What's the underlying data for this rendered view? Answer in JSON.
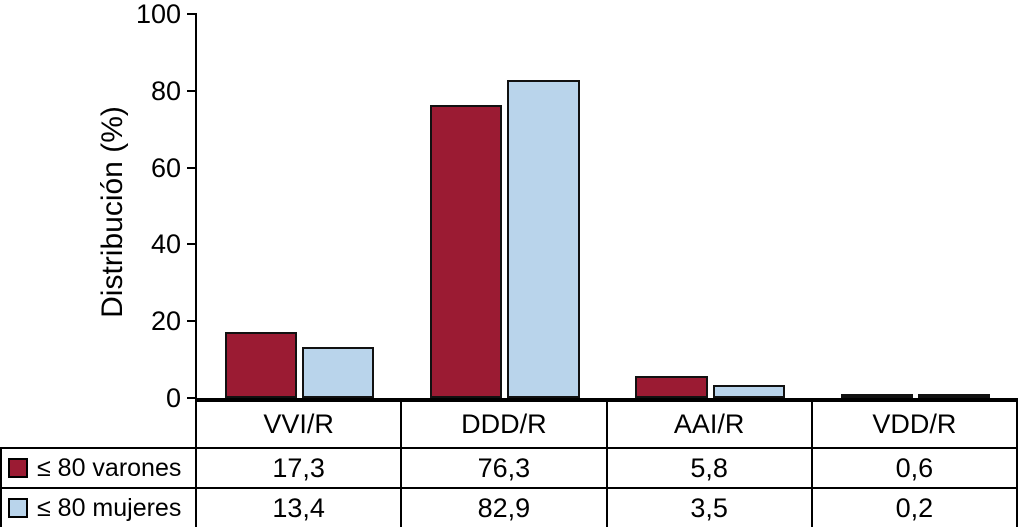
{
  "chart_data": {
    "type": "bar",
    "title": "",
    "ylabel": "Distribución (%)",
    "ylim": [
      0,
      100
    ],
    "yticks": [
      0,
      20,
      40,
      60,
      80,
      100
    ],
    "grid": false,
    "legend_position": "table-left",
    "decimal_separator": ",",
    "categories": [
      "VVI/R",
      "DDD/R",
      "AAI/R",
      "VDD/R"
    ],
    "series": [
      {
        "name": "≤ 80 varones",
        "color": "#9b1b33",
        "values": [
          17.3,
          76.3,
          5.8,
          0.6
        ]
      },
      {
        "name": "≤ 80 mujeres",
        "color": "#b9d4eb",
        "values": [
          13.4,
          82.9,
          3.5,
          0.2
        ]
      }
    ]
  }
}
